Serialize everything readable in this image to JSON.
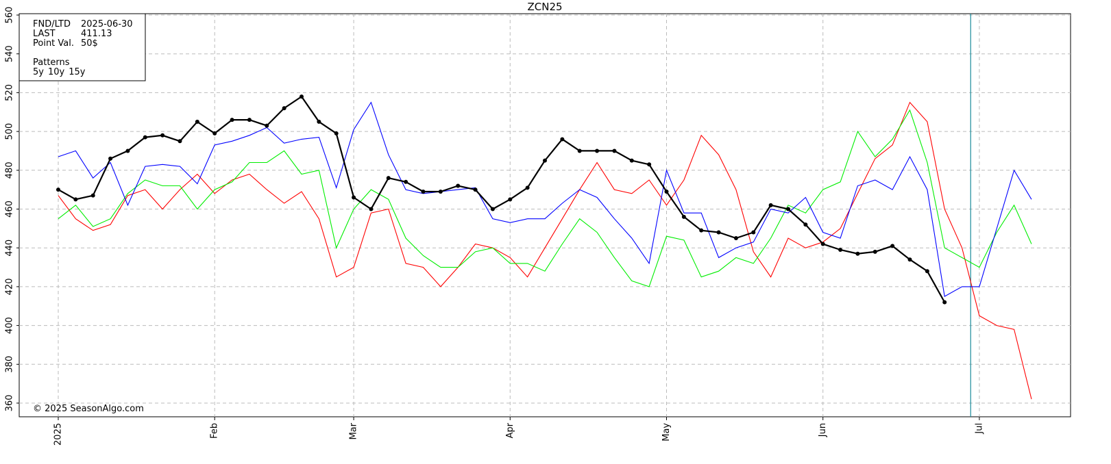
{
  "chart_data": {
    "type": "line",
    "title": "ZCN25",
    "categories": [
      "2025",
      null,
      null,
      null,
      null,
      null,
      null,
      null,
      null,
      "Feb",
      null,
      null,
      null,
      null,
      null,
      null,
      null,
      "Mar",
      null,
      null,
      null,
      null,
      null,
      null,
      null,
      null,
      "Apr",
      null,
      null,
      null,
      null,
      null,
      null,
      null,
      null,
      "May",
      null,
      null,
      null,
      null,
      null,
      null,
      null,
      null,
      "Jun",
      null,
      null,
      null,
      null,
      null,
      null,
      null,
      null,
      "Jul",
      null,
      null,
      null
    ],
    "series": [
      {
        "name": "5y",
        "color": "#ff0000",
        "values": [
          467,
          455,
          449,
          452,
          467,
          470,
          460,
          470,
          478,
          468,
          475,
          478,
          470,
          463,
          469,
          455,
          425,
          430,
          458,
          460,
          432,
          430,
          420,
          430,
          442,
          440,
          435,
          425,
          440,
          455,
          470,
          484,
          470,
          468,
          475,
          462,
          475,
          498,
          488,
          470,
          438,
          425,
          445,
          440,
          443,
          450,
          468,
          486,
          493,
          515,
          505,
          460,
          440,
          405,
          400,
          398,
          362
        ]
      },
      {
        "name": "10y",
        "color": "#00ee00",
        "values": [
          455,
          462,
          451,
          455,
          468,
          475,
          472,
          472,
          460,
          470,
          474,
          484,
          484,
          490,
          478,
          480,
          440,
          460,
          470,
          465,
          445,
          436,
          430,
          430,
          438,
          440,
          432,
          432,
          428,
          442,
          455,
          448,
          435,
          423,
          420,
          446,
          444,
          425,
          428,
          435,
          432,
          445,
          462,
          458,
          470,
          474,
          500,
          487,
          496,
          511,
          484,
          440,
          435,
          430,
          448,
          462,
          442
        ]
      },
      {
        "name": "15y",
        "color": "#0000ff",
        "values": [
          487,
          490,
          476,
          484,
          462,
          482,
          483,
          482,
          473,
          493,
          495,
          498,
          502,
          494,
          496,
          497,
          471,
          501,
          515,
          488,
          470,
          468,
          469,
          470,
          471,
          455,
          453,
          455,
          455,
          463,
          470,
          466,
          455,
          445,
          432,
          480,
          458,
          458,
          435,
          440,
          443,
          460,
          458,
          466,
          448,
          445,
          472,
          475,
          470,
          487,
          470,
          415,
          420,
          420,
          450,
          480,
          465
        ]
      },
      {
        "color": "#000000",
        "values": [
          470,
          465,
          467,
          486,
          490,
          497,
          498,
          495,
          505,
          499,
          506,
          506,
          503,
          512,
          518,
          505,
          499,
          466,
          460,
          476,
          474,
          469,
          469,
          472,
          470,
          460,
          465,
          471,
          485,
          496,
          490,
          490,
          490,
          485,
          483,
          469,
          456,
          449,
          448,
          445,
          448,
          462,
          460,
          452,
          442,
          439,
          437,
          438,
          441,
          434,
          428,
          412,
          null,
          null,
          null,
          null,
          null
        ]
      }
    ],
    "ylim": [
      360,
      560
    ],
    "yticks": [
      360,
      380,
      400,
      420,
      440,
      460,
      480,
      500,
      520,
      540,
      560
    ],
    "grid": true,
    "info": {
      "rows": [
        [
          "FND/LTD",
          "2025-06-30"
        ],
        [
          "LAST",
          "411.13"
        ],
        [
          "Point Val.",
          "50$"
        ]
      ],
      "patterns_label": "Patterns"
    },
    "note": "© 2025 SeasonAlgo.com"
  }
}
